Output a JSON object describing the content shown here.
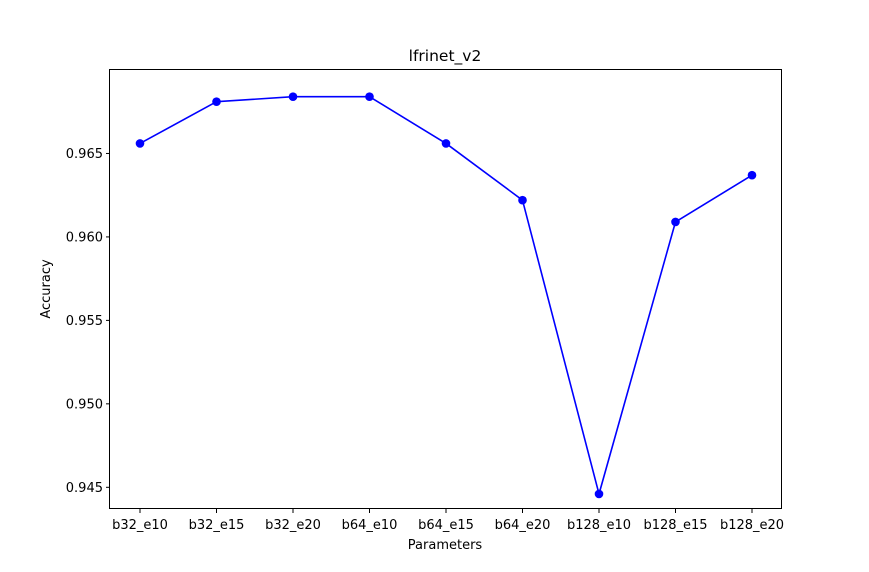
{
  "chart_data": {
    "type": "line",
    "title": "lfrinet_v2",
    "xlabel": "Parameters",
    "ylabel": "Accuracy",
    "categories": [
      "b32_e10",
      "b32_e15",
      "b32_e20",
      "b64_e10",
      "b64_e15",
      "b64_e20",
      "b128_e10",
      "b128_e15",
      "b128_e20"
    ],
    "series": [
      {
        "values": [
          0.9656,
          0.9681,
          0.9684,
          0.9684,
          0.9656,
          0.9622,
          0.9446,
          0.9609,
          0.9637
        ]
      }
    ],
    "ylim": [
      0.9437,
      0.97
    ],
    "yticks": [
      0.945,
      0.95,
      0.955,
      0.96,
      0.965
    ],
    "ytick_labels": [
      "0.945",
      "0.950",
      "0.955",
      "0.960",
      "0.965"
    ],
    "grid": false,
    "line_color": "#0000ff",
    "marker": "circle"
  }
}
